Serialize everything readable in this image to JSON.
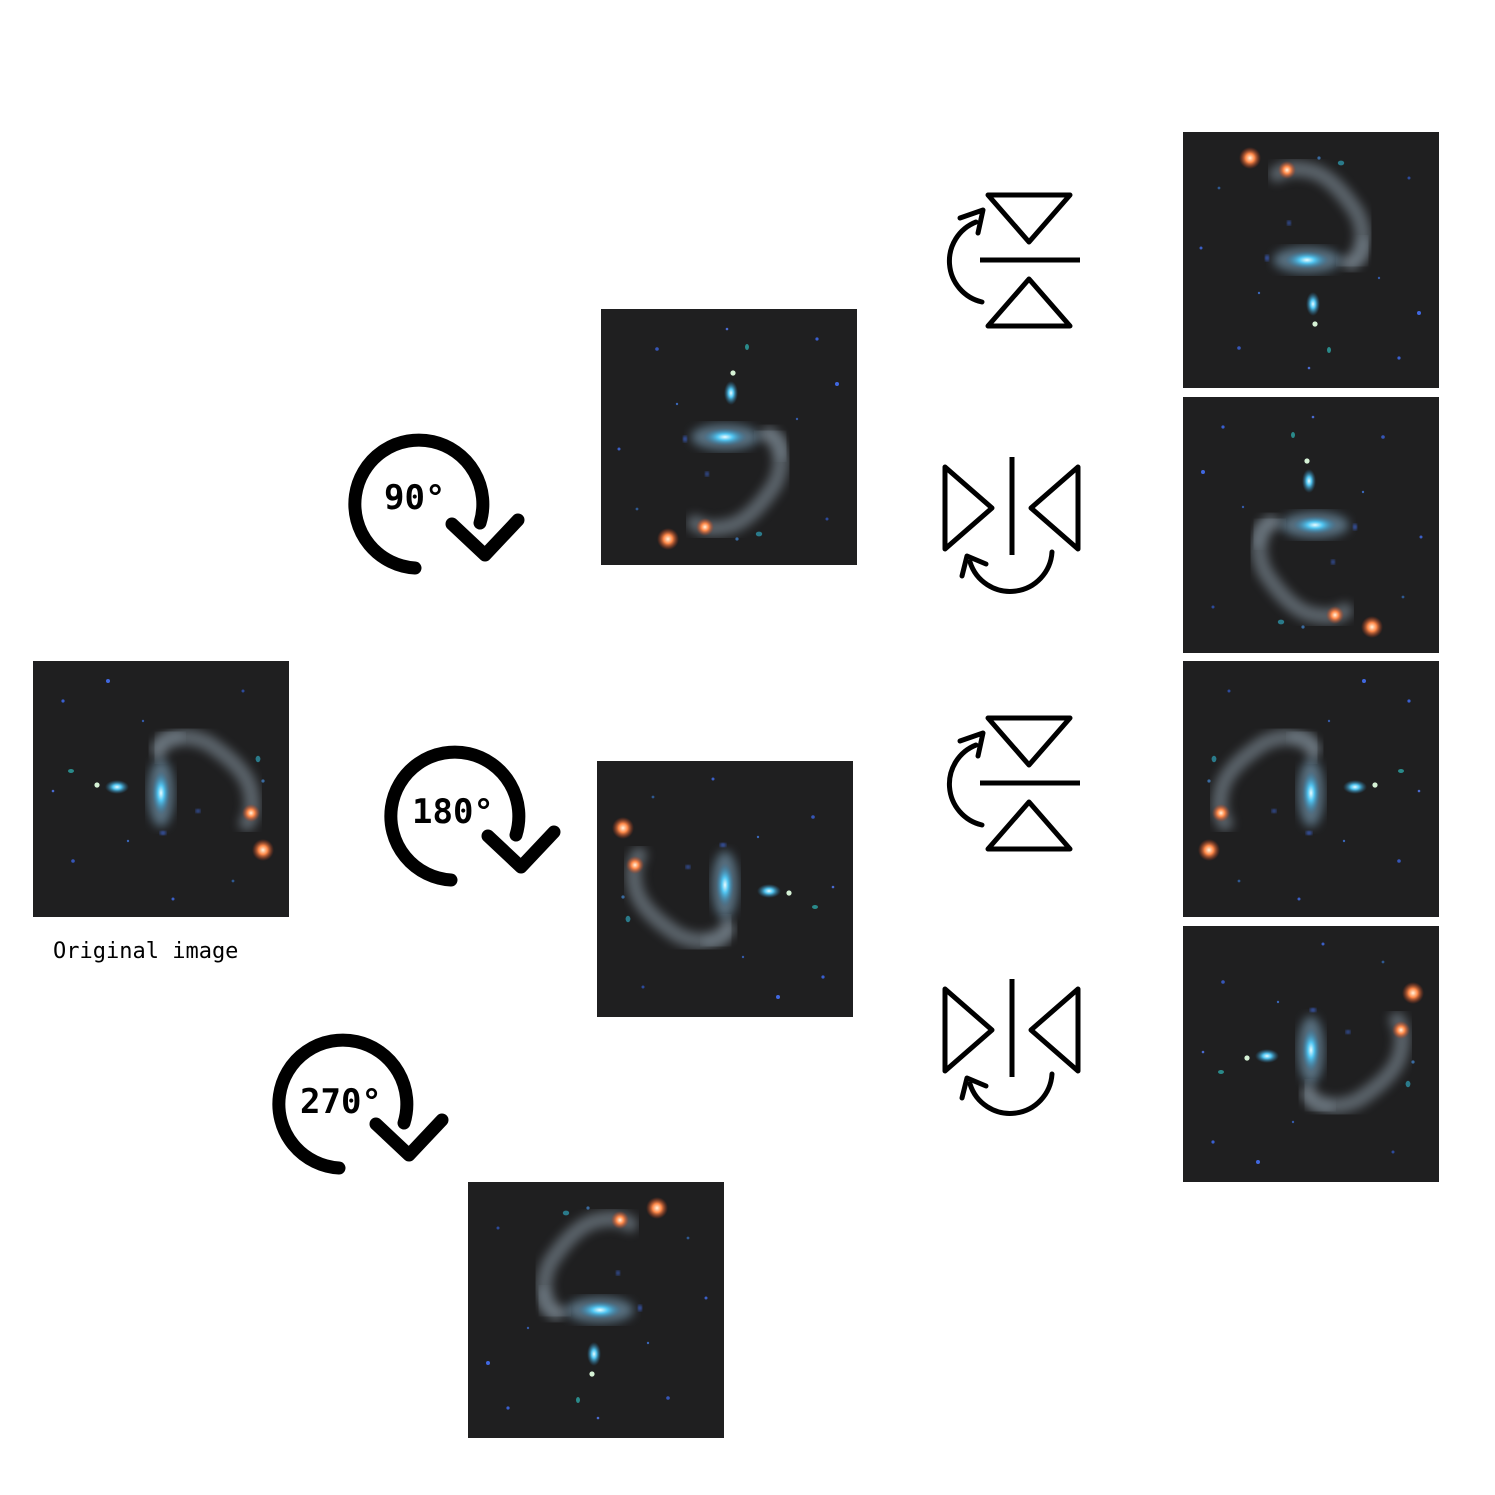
{
  "diagram": {
    "original_caption": "Original image",
    "rotations": [
      {
        "label": "90°",
        "degrees": 90
      },
      {
        "label": "180°",
        "degrees": 180
      },
      {
        "label": "270°",
        "degrees": 270
      }
    ],
    "flip_symbols": [
      {
        "type": "vertical-flip"
      },
      {
        "type": "horizontal-flip"
      },
      {
        "type": "vertical-flip"
      },
      {
        "type": "horizontal-flip"
      }
    ]
  }
}
